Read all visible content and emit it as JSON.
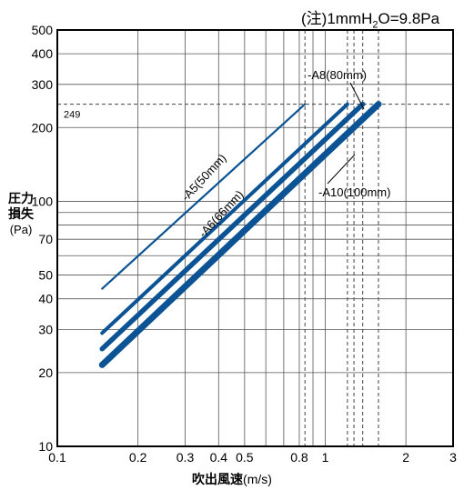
{
  "note": {
    "prefix": "(注)1mmH",
    "sub": "2",
    "suffix": "O=9.8Pa"
  },
  "chart_data": {
    "type": "line",
    "xscale": "log",
    "yscale": "log",
    "xlim": [
      0.1,
      3
    ],
    "ylim": [
      10,
      500
    ],
    "xlabel": "吹出風速",
    "xlabel_unit": "(m/s)",
    "ylabel": "圧力損失",
    "ylabel_unit": "(Pa)",
    "x_ticks": [
      {
        "value": 0.1,
        "label": "0.1"
      },
      {
        "value": 0.2,
        "label": "0.2"
      },
      {
        "value": 0.3,
        "label": "0.3"
      },
      {
        "value": 0.4,
        "label": "0.4"
      },
      {
        "value": 0.5,
        "label": "0.5"
      },
      {
        "value": 0.8,
        "label": "0.8"
      },
      {
        "value": 1,
        "label": "1"
      },
      {
        "value": 2,
        "label": "2"
      },
      {
        "value": 3,
        "label": "3"
      }
    ],
    "x_grid": [
      0.1,
      0.2,
      0.3,
      0.4,
      0.5,
      0.6,
      0.7,
      0.8,
      0.9,
      1,
      2,
      3
    ],
    "y_ticks": [
      {
        "value": 10,
        "label": "10"
      },
      {
        "value": 20,
        "label": "20"
      },
      {
        "value": 30,
        "label": "30"
      },
      {
        "value": 40,
        "label": "40"
      },
      {
        "value": 50,
        "label": "50"
      },
      {
        "value": 70,
        "label": "70"
      },
      {
        "value": 100,
        "label": "100"
      },
      {
        "value": 200,
        "label": "200"
      },
      {
        "value": 300,
        "label": "300"
      },
      {
        "value": 400,
        "label": "400"
      },
      {
        "value": 500,
        "label": "500"
      }
    ],
    "y_grid": [
      10,
      20,
      30,
      40,
      50,
      60,
      70,
      80,
      90,
      100,
      200,
      300,
      400,
      500
    ],
    "reference": {
      "y": 249,
      "label": "249"
    },
    "series": [
      {
        "name": "A5(50mm)",
        "x": [
          0.147,
          0.84
        ],
        "y": [
          44,
          249
        ],
        "dashed_x": [
          0.84
        ]
      },
      {
        "name": "A6(66mm)",
        "x": [
          0.147,
          1.21
        ],
        "y": [
          29,
          249
        ],
        "dashed_x": [
          1.21
        ]
      },
      {
        "name": "A8(80mm)",
        "x": [
          0.147,
          1.38
        ],
        "y": [
          25,
          249
        ],
        "dashed_x": [
          1.28,
          1.38
        ]
      },
      {
        "name": "A10(100mm)",
        "x": [
          0.147,
          1.58
        ],
        "y": [
          21.5,
          249
        ],
        "dashed_x": [
          1.58
        ]
      }
    ],
    "series_labels": [
      {
        "text": "-A5(50mm)"
      },
      {
        "text": "-A6(66mm)"
      },
      {
        "text": "-A8(80mm)"
      },
      {
        "text": "-A10(100mm)"
      }
    ]
  }
}
